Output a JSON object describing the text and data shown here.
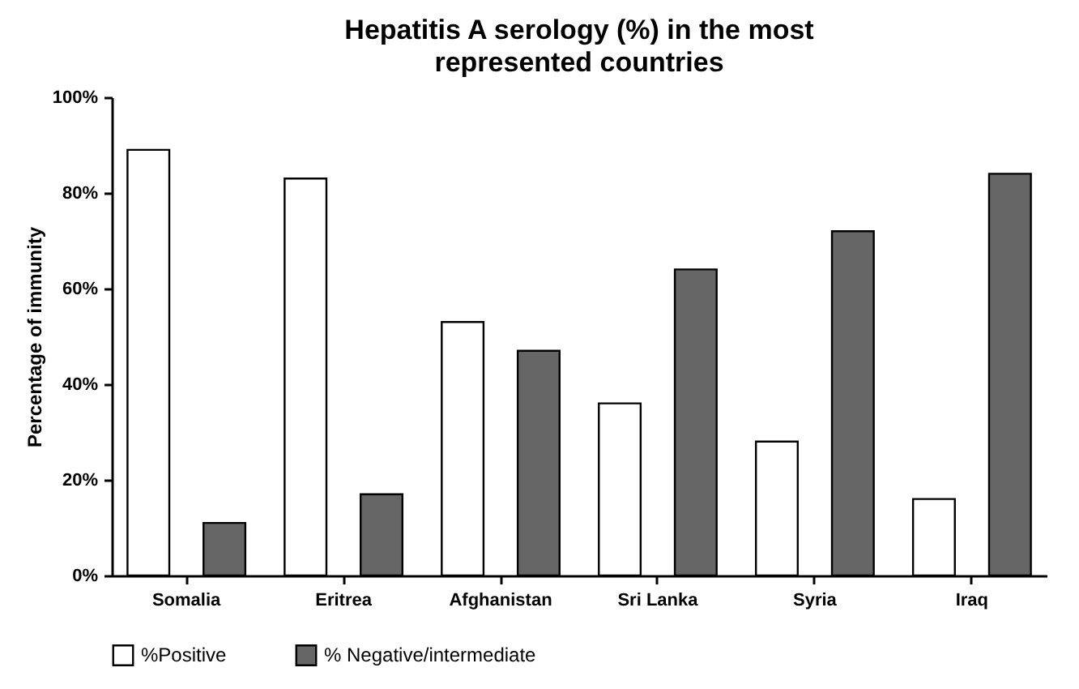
{
  "chart_data": {
    "type": "bar",
    "title": "Hepatitis A serology (%)  in the most represented countries",
    "ylabel": "Percentage of immunity",
    "categories": [
      "Somalia",
      "Eritrea",
      "Afghanistan",
      "Sri Lanka",
      "Syria",
      "Iraq"
    ],
    "series": [
      {
        "name": "%Positive",
        "color": "#ffffff",
        "values": [
          89,
          83,
          53,
          36,
          28,
          16
        ]
      },
      {
        "name": "% Negative/intermediate",
        "color": "#666666",
        "values": [
          11,
          17,
          47,
          64,
          72,
          84
        ]
      }
    ],
    "ylim": [
      0,
      100
    ],
    "yticks": [
      {
        "value": 0,
        "label": "0%"
      },
      {
        "value": 20,
        "label": "20%"
      },
      {
        "value": 40,
        "label": "40%"
      },
      {
        "value": 60,
        "label": "60%"
      },
      {
        "value": 80,
        "label": "80%"
      },
      {
        "value": 100,
        "label": "100%"
      }
    ],
    "grid": false,
    "legend": "bottom"
  }
}
